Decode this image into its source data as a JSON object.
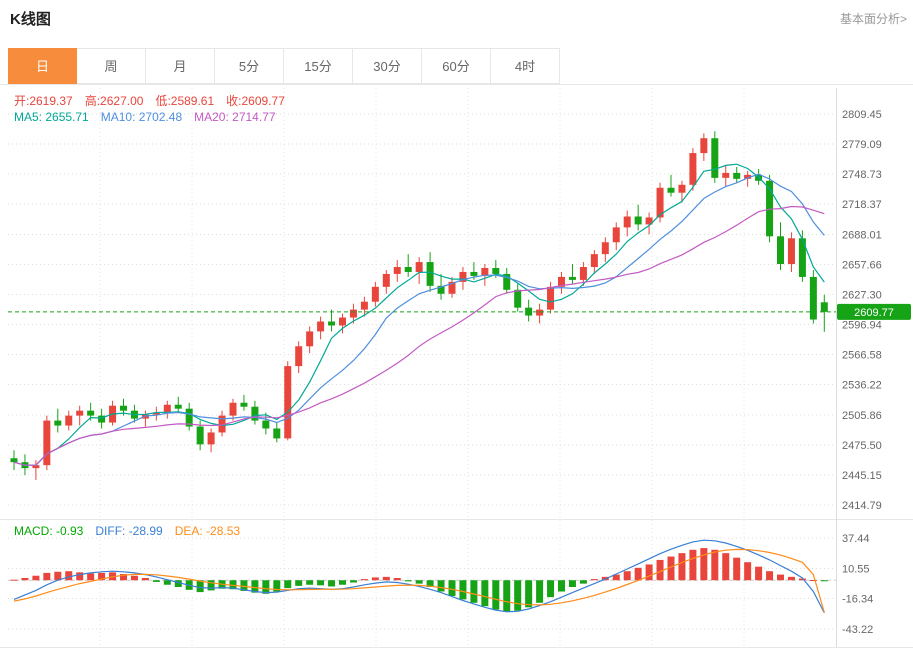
{
  "header": {
    "title": "K线图",
    "link": "基本面分析>"
  },
  "tabs": {
    "items": [
      "日",
      "周",
      "月",
      "5分",
      "15分",
      "30分",
      "60分",
      "4时"
    ],
    "selected_index": 0
  },
  "info": {
    "ohlc": [
      {
        "name": "open-value",
        "label": "开:",
        "value": "2619.37",
        "color": "#e8453c"
      },
      {
        "name": "high-value",
        "label": "高:",
        "value": "2627.00",
        "color": "#e8453c"
      },
      {
        "name": "low-value",
        "label": "低:",
        "value": "2589.61",
        "color": "#e8453c"
      },
      {
        "name": "close-value",
        "label": "收:",
        "value": "2609.77",
        "color": "#e8453c"
      }
    ],
    "ma": [
      {
        "name": "ma5-value",
        "label": "MA5: ",
        "value": "2655.71",
        "color": "#00a896"
      },
      {
        "name": "ma10-value",
        "label": "MA10: ",
        "value": "2702.48",
        "color": "#4f8fde"
      },
      {
        "name": "ma20-value",
        "label": "MA20: ",
        "value": "2714.77",
        "color": "#c45ac4"
      }
    ]
  },
  "indicator": {
    "items": [
      {
        "name": "macd-value",
        "label": "MACD: ",
        "value": "-0.93",
        "color": "#00a800"
      },
      {
        "name": "diff-value",
        "label": "DIFF: ",
        "value": "-28.99",
        "color": "#3a7fd5"
      },
      {
        "name": "dea-value",
        "label": "DEA: ",
        "value": "-28.53",
        "color": "#ff8c1a"
      }
    ]
  },
  "colors": {
    "up": "#e8453c",
    "down": "#16a316",
    "price_tag_bg": "#16a316",
    "grid": "#dddddd",
    "grid_vertical": "#e5e5e5",
    "axis_text": "#666666",
    "tab_active": "#f78c3c"
  },
  "chart_data": [
    {
      "type": "candlestick",
      "title": "K线图 (日K)",
      "period_selected": "日",
      "y_axis_ticks": [
        2809.45,
        2779.09,
        2748.73,
        2718.37,
        2688.01,
        2657.66,
        2627.3,
        2596.94,
        2566.58,
        2536.22,
        2505.86,
        2475.5,
        2445.15,
        2414.79
      ],
      "ylim": [
        2414.79,
        2809.45
      ],
      "current_price": 2609.77,
      "last_candle": {
        "open": 2619.37,
        "high": 2627.0,
        "low": 2589.61,
        "close": 2609.77
      },
      "ma_last": {
        "MA5": 2655.71,
        "MA10": 2702.48,
        "MA20": 2714.77
      },
      "ma": [
        {
          "period": 5,
          "color": "#00a896"
        },
        {
          "period": 10,
          "color": "#4f8fde"
        },
        {
          "period": 20,
          "color": "#c45ac4"
        }
      ],
      "candles_format": [
        "open",
        "high",
        "low",
        "close"
      ],
      "candles": [
        [
          2462,
          2470,
          2450,
          2458
        ],
        [
          2458,
          2466,
          2445,
          2452
        ],
        [
          2452,
          2460,
          2440,
          2455
        ],
        [
          2455,
          2505,
          2450,
          2500
        ],
        [
          2500,
          2512,
          2488,
          2495
        ],
        [
          2495,
          2510,
          2490,
          2505
        ],
        [
          2505,
          2515,
          2495,
          2510
        ],
        [
          2510,
          2518,
          2500,
          2505
        ],
        [
          2505,
          2512,
          2492,
          2498
        ],
        [
          2498,
          2520,
          2495,
          2515
        ],
        [
          2515,
          2522,
          2505,
          2510
        ],
        [
          2510,
          2516,
          2498,
          2502
        ],
        [
          2502,
          2510,
          2494,
          2506
        ],
        [
          2506,
          2514,
          2500,
          2508
        ],
        [
          2508,
          2520,
          2502,
          2516
        ],
        [
          2516,
          2524,
          2508,
          2512
        ],
        [
          2512,
          2518,
          2490,
          2494
        ],
        [
          2494,
          2500,
          2470,
          2476
        ],
        [
          2476,
          2492,
          2468,
          2488
        ],
        [
          2488,
          2510,
          2484,
          2505
        ],
        [
          2505,
          2522,
          2500,
          2518
        ],
        [
          2518,
          2526,
          2510,
          2514
        ],
        [
          2514,
          2520,
          2496,
          2500
        ],
        [
          2500,
          2508,
          2486,
          2492
        ],
        [
          2492,
          2498,
          2478,
          2482
        ],
        [
          2482,
          2560,
          2480,
          2555
        ],
        [
          2555,
          2580,
          2548,
          2575
        ],
        [
          2575,
          2595,
          2568,
          2590
        ],
        [
          2590,
          2605,
          2582,
          2600
        ],
        [
          2600,
          2612,
          2590,
          2596
        ],
        [
          2596,
          2608,
          2588,
          2604
        ],
        [
          2604,
          2618,
          2598,
          2612
        ],
        [
          2612,
          2625,
          2605,
          2620
        ],
        [
          2620,
          2640,
          2615,
          2635
        ],
        [
          2635,
          2652,
          2628,
          2648
        ],
        [
          2648,
          2662,
          2640,
          2655
        ],
        [
          2655,
          2668,
          2645,
          2650
        ],
        [
          2650,
          2665,
          2638,
          2660
        ],
        [
          2660,
          2670,
          2630,
          2636
        ],
        [
          2636,
          2648,
          2622,
          2628
        ],
        [
          2628,
          2645,
          2624,
          2640
        ],
        [
          2640,
          2655,
          2632,
          2650
        ],
        [
          2650,
          2660,
          2642,
          2646
        ],
        [
          2646,
          2658,
          2636,
          2654
        ],
        [
          2654,
          2662,
          2644,
          2648
        ],
        [
          2648,
          2654,
          2628,
          2632
        ],
        [
          2632,
          2638,
          2610,
          2614
        ],
        [
          2614,
          2622,
          2600,
          2606
        ],
        [
          2606,
          2618,
          2598,
          2612
        ],
        [
          2612,
          2640,
          2608,
          2635
        ],
        [
          2635,
          2650,
          2628,
          2645
        ],
        [
          2645,
          2658,
          2638,
          2642
        ],
        [
          2642,
          2660,
          2636,
          2655
        ],
        [
          2655,
          2672,
          2648,
          2668
        ],
        [
          2668,
          2685,
          2660,
          2680
        ],
        [
          2680,
          2700,
          2672,
          2695
        ],
        [
          2695,
          2712,
          2686,
          2706
        ],
        [
          2706,
          2718,
          2692,
          2698
        ],
        [
          2698,
          2710,
          2688,
          2705
        ],
        [
          2705,
          2740,
          2700,
          2735
        ],
        [
          2735,
          2748,
          2726,
          2730
        ],
        [
          2730,
          2742,
          2720,
          2738
        ],
        [
          2738,
          2775,
          2732,
          2770
        ],
        [
          2770,
          2790,
          2762,
          2785
        ],
        [
          2785,
          2792,
          2740,
          2745
        ],
        [
          2745,
          2758,
          2736,
          2750
        ],
        [
          2750,
          2756,
          2740,
          2744
        ],
        [
          2744,
          2752,
          2736,
          2748
        ],
        [
          2748,
          2754,
          2738,
          2742
        ],
        [
          2742,
          2748,
          2680,
          2686
        ],
        [
          2686,
          2700,
          2652,
          2658
        ],
        [
          2658,
          2690,
          2650,
          2684
        ],
        [
          2684,
          2692,
          2640,
          2645
        ],
        [
          2645,
          2652,
          2598,
          2602
        ],
        [
          2619.37,
          2627.0,
          2589.61,
          2609.77
        ]
      ]
    },
    {
      "type": "bar",
      "title": "MACD",
      "y_axis_ticks": [
        37.44,
        10.55,
        -16.34,
        -43.22
      ],
      "last": {
        "MACD": -0.93,
        "DIFF": -28.99,
        "DEA": -28.53
      },
      "diff_color": "#3a7fd5",
      "dea_color": "#ff8c1a",
      "histogram": [
        0.5,
        2,
        4,
        6.5,
        7.5,
        8,
        7,
        6,
        6.5,
        7,
        5.5,
        4,
        2,
        -1.5,
        -4,
        -6,
        -8.5,
        -10.5,
        -9,
        -7.5,
        -8,
        -9.5,
        -11,
        -12,
        -10,
        -7,
        -5,
        -4,
        -4.5,
        -5.5,
        -4,
        -2,
        1,
        2.5,
        3,
        2,
        -1,
        -3,
        -6,
        -10,
        -14,
        -17,
        -20,
        -23,
        -26,
        -28,
        -27,
        -24,
        -20,
        -15,
        -10,
        -6,
        -3,
        1,
        3,
        5,
        8,
        11,
        14,
        18,
        21,
        24,
        27,
        28.5,
        27,
        24,
        20,
        16,
        12,
        8,
        5,
        3,
        1.5,
        0.2,
        -0.93
      ],
      "diff": [
        -17,
        -13,
        -9,
        -4,
        0,
        3,
        5,
        6.5,
        7.5,
        8,
        7.5,
        6.5,
        5,
        3,
        0.5,
        -2,
        -4.5,
        -6.5,
        -7,
        -6.5,
        -7,
        -8.5,
        -10,
        -11,
        -10.5,
        -9,
        -7.5,
        -7,
        -7.5,
        -8,
        -7.5,
        -6,
        -4,
        -2.5,
        -1.5,
        -2,
        -3.5,
        -5.5,
        -8,
        -11,
        -14.5,
        -18,
        -21,
        -24,
        -26.5,
        -28,
        -27.5,
        -25.5,
        -22.5,
        -19,
        -15,
        -11,
        -7,
        -3,
        1,
        5.5,
        10,
        14.5,
        19,
        23.5,
        27.5,
        31,
        34,
        35.5,
        35,
        33,
        30,
        26.5,
        22.5,
        18,
        13,
        8,
        2,
        -10,
        -28.99
      ],
      "dea": [
        -18.5,
        -16.5,
        -14,
        -11,
        -8,
        -5.5,
        -3,
        -1,
        1,
        3,
        4.5,
        5.2,
        5.3,
        4.8,
        3.8,
        2.5,
        1,
        -0.8,
        -2.3,
        -3.5,
        -4.5,
        -5.5,
        -6.5,
        -7.5,
        -8.2,
        -8.5,
        -8.4,
        -8.2,
        -8,
        -8,
        -7.9,
        -7.5,
        -6.8,
        -6,
        -5.2,
        -4.6,
        -4.4,
        -4.6,
        -5.3,
        -6.5,
        -8,
        -10,
        -12.2,
        -14.5,
        -16.9,
        -19.1,
        -20.8,
        -21.7,
        -21.9,
        -21.3,
        -20,
        -18.2,
        -16,
        -13.4,
        -10.5,
        -7.3,
        -3.8,
        -0.1,
        3.7,
        7.7,
        11.7,
        15.6,
        19.3,
        22.5,
        25,
        26.6,
        27.3,
        27.2,
        26.2,
        24.6,
        22.3,
        19.4,
        15.9,
        5,
        -28.53
      ]
    }
  ]
}
